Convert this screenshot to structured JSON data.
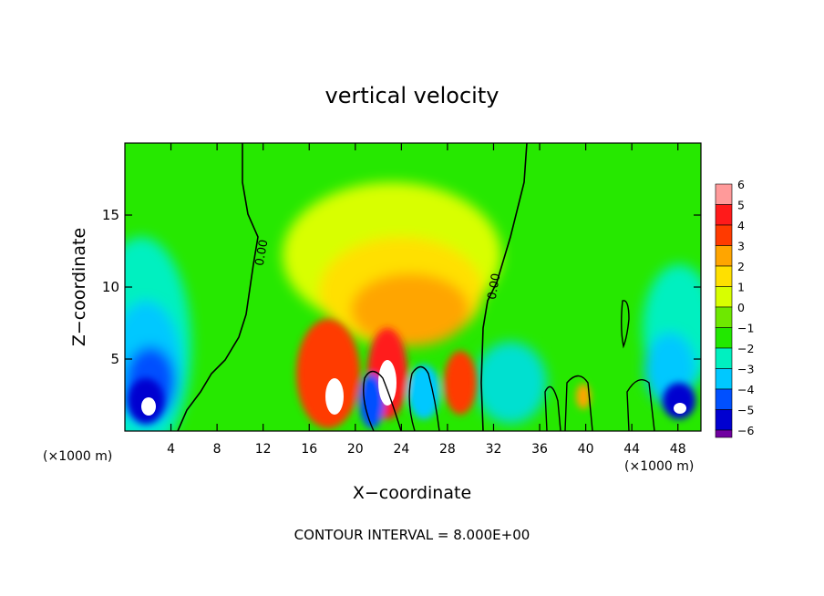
{
  "chart_data": {
    "type": "heatmap",
    "title": "vertical velocity",
    "xlabel": "X−coordinate",
    "ylabel": "Z−coordinate",
    "x_unit_left": "(×1000 m)",
    "x_unit_right": "(×1000 m)",
    "footer": "CONTOUR INTERVAL = 8.000E+00",
    "xlim": [
      0,
      50
    ],
    "ylim": [
      0,
      20
    ],
    "x_ticks": [
      4,
      8,
      12,
      16,
      20,
      24,
      28,
      32,
      36,
      40,
      44,
      48
    ],
    "x_tick_labels": [
      "4",
      "8",
      "12",
      "16",
      "20",
      "24",
      "28",
      "32",
      "36",
      "40",
      "44",
      "48"
    ],
    "y_ticks": [
      5,
      10,
      15
    ],
    "y_tick_labels": [
      "5",
      "10",
      "15"
    ],
    "zero_contour_label": "0.00",
    "colorbar": {
      "levels": [
        6,
        5,
        4,
        3,
        2,
        1,
        0,
        -1,
        -2,
        -3,
        -4,
        -5,
        -6
      ],
      "labels": [
        "6",
        "5",
        "4",
        "3",
        "2",
        "1",
        "0",
        "−1",
        "−2",
        "−3",
        "−4",
        "−5",
        "−6"
      ],
      "colors": [
        "#ff9a9a",
        "#ff1a1a",
        "#ff3a00",
        "#ffa500",
        "#ffe000",
        "#d8ff00",
        "#6ee800",
        "#22e800",
        "#00f0c0",
        "#00c8ff",
        "#0050ff",
        "#0000d0",
        "#7000a0"
      ]
    },
    "features": [
      {
        "x": 2.5,
        "z": 3.5,
        "value": -5.5
      },
      {
        "x": 9.0,
        "z": 8.0,
        "value": -0.6
      },
      {
        "x": 17.5,
        "z": 3.0,
        "value": 4.0
      },
      {
        "x": 18.5,
        "z": 2.0,
        "value": 7.0
      },
      {
        "x": 20.5,
        "z": 1.5,
        "value": -4.5
      },
      {
        "x": 22.5,
        "z": 4.0,
        "value": 6.5
      },
      {
        "x": 23.0,
        "z": 9.5,
        "value": 2.5
      },
      {
        "x": 26.0,
        "z": 2.5,
        "value": -3.5
      },
      {
        "x": 29.0,
        "z": 2.5,
        "value": 4.5
      },
      {
        "x": 33.0,
        "z": 3.0,
        "value": -2.0
      },
      {
        "x": 40.0,
        "z": 2.0,
        "value": 3.0
      },
      {
        "x": 48.5,
        "z": 4.0,
        "value": -4.5
      }
    ],
    "grid": false
  },
  "colors": {
    "axis": "#000000",
    "background": "#ffffff"
  }
}
